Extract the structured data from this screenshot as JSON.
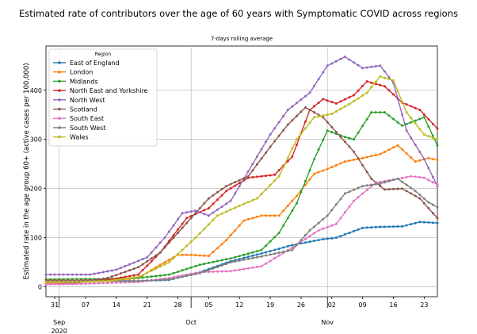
{
  "chart_data": {
    "type": "line",
    "title": "Estimated rate of contributors over the age of 60 years with Symptomatic COVID across regions",
    "subtitle": "7-days rolling average",
    "xlabel": "",
    "ylabel": "Estimated rate in the age group 60+ (active cases per 100,000)",
    "x_start": "2020-08-29",
    "x_end": "2020-11-26",
    "xlim": [
      "2020-08-29",
      "2020-11-26"
    ],
    "ylim": [
      -20,
      490
    ],
    "x_ticks": [
      {
        "date": "2020-08-31",
        "label": "31"
      },
      {
        "date": "2020-09-07",
        "label": "07"
      },
      {
        "date": "2020-09-14",
        "label": "14"
      },
      {
        "date": "2020-09-21",
        "label": "21"
      },
      {
        "date": "2020-09-28",
        "label": "28"
      },
      {
        "date": "2020-10-05",
        "label": "05"
      },
      {
        "date": "2020-10-12",
        "label": "12"
      },
      {
        "date": "2020-10-19",
        "label": "19"
      },
      {
        "date": "2020-10-26",
        "label": "26"
      },
      {
        "date": "2020-11-02",
        "label": "02"
      },
      {
        "date": "2020-11-09",
        "label": "09"
      },
      {
        "date": "2020-11-16",
        "label": "16"
      },
      {
        "date": "2020-11-23",
        "label": "23"
      }
    ],
    "month_labels": [
      {
        "date": "2020-09-01",
        "label": "Sep"
      },
      {
        "date": "2020-10-01",
        "label": "Oct"
      },
      {
        "date": "2020-11-01",
        "label": "Nov"
      }
    ],
    "year_label": {
      "date": "2020-09-01",
      "label": "2020"
    },
    "y_ticks": [
      0,
      100,
      200,
      300,
      400
    ],
    "grid_x_dates": [
      "2020-09-01",
      "2020-10-01",
      "2020-11-01"
    ],
    "grid_y": [
      0,
      100,
      200,
      300,
      400
    ],
    "legend_title": "Region",
    "legend_position": "top-left",
    "series": [
      {
        "name": "East of England",
        "color": "#1f77b4",
        "points": [
          [
            "2020-08-29",
            10
          ],
          [
            "2020-09-05",
            12
          ],
          [
            "2020-09-12",
            13
          ],
          [
            "2020-09-19",
            12
          ],
          [
            "2020-09-26",
            14
          ],
          [
            "2020-10-03",
            30
          ],
          [
            "2020-10-10",
            52
          ],
          [
            "2020-10-17",
            68
          ],
          [
            "2020-10-24",
            85
          ],
          [
            "2020-10-31",
            97
          ],
          [
            "2020-11-03",
            100
          ],
          [
            "2020-11-06",
            110
          ],
          [
            "2020-11-09",
            120
          ],
          [
            "2020-11-13",
            122
          ],
          [
            "2020-11-18",
            123
          ],
          [
            "2020-11-22",
            132
          ],
          [
            "2020-11-26",
            130
          ]
        ]
      },
      {
        "name": "London",
        "color": "#ff7f0e",
        "points": [
          [
            "2020-08-29",
            8
          ],
          [
            "2020-09-05",
            10
          ],
          [
            "2020-09-12",
            12
          ],
          [
            "2020-09-19",
            18
          ],
          [
            "2020-09-24",
            45
          ],
          [
            "2020-09-28",
            65
          ],
          [
            "2020-10-01",
            65
          ],
          [
            "2020-10-05",
            63
          ],
          [
            "2020-10-09",
            95
          ],
          [
            "2020-10-13",
            135
          ],
          [
            "2020-10-17",
            145
          ],
          [
            "2020-10-21",
            145
          ],
          [
            "2020-10-25",
            185
          ],
          [
            "2020-10-29",
            230
          ],
          [
            "2020-11-01",
            240
          ],
          [
            "2020-11-05",
            255
          ],
          [
            "2020-11-09",
            262
          ],
          [
            "2020-11-13",
            270
          ],
          [
            "2020-11-17",
            288
          ],
          [
            "2020-11-21",
            255
          ],
          [
            "2020-11-24",
            262
          ],
          [
            "2020-11-26",
            258
          ]
        ]
      },
      {
        "name": "Midlands",
        "color": "#2ca02c",
        "points": [
          [
            "2020-08-29",
            15
          ],
          [
            "2020-09-05",
            16
          ],
          [
            "2020-09-12",
            16
          ],
          [
            "2020-09-19",
            18
          ],
          [
            "2020-09-26",
            25
          ],
          [
            "2020-10-03",
            45
          ],
          [
            "2020-10-10",
            58
          ],
          [
            "2020-10-17",
            75
          ],
          [
            "2020-10-21",
            110
          ],
          [
            "2020-10-25",
            170
          ],
          [
            "2020-10-29",
            260
          ],
          [
            "2020-11-01",
            318
          ],
          [
            "2020-11-05",
            305
          ],
          [
            "2020-11-07",
            300
          ],
          [
            "2020-11-11",
            355
          ],
          [
            "2020-11-14",
            355
          ],
          [
            "2020-11-18",
            328
          ],
          [
            "2020-11-23",
            345
          ],
          [
            "2020-11-26",
            288
          ]
        ]
      },
      {
        "name": "North East and Yorkshire",
        "color": "#d62728",
        "points": [
          [
            "2020-08-29",
            13
          ],
          [
            "2020-09-05",
            13
          ],
          [
            "2020-09-12",
            14
          ],
          [
            "2020-09-19",
            25
          ],
          [
            "2020-09-24",
            70
          ],
          [
            "2020-09-30",
            140
          ],
          [
            "2020-10-05",
            160
          ],
          [
            "2020-10-09",
            195
          ],
          [
            "2020-10-14",
            222
          ],
          [
            "2020-10-20",
            228
          ],
          [
            "2020-10-24",
            265
          ],
          [
            "2020-10-28",
            360
          ],
          [
            "2020-10-31",
            382
          ],
          [
            "2020-11-03",
            373
          ],
          [
            "2020-11-07",
            390
          ],
          [
            "2020-11-10",
            418
          ],
          [
            "2020-11-14",
            408
          ],
          [
            "2020-11-18",
            375
          ],
          [
            "2020-11-22",
            360
          ],
          [
            "2020-11-26",
            322
          ]
        ]
      },
      {
        "name": "North West",
        "color": "#9467bd",
        "points": [
          [
            "2020-08-29",
            25
          ],
          [
            "2020-09-03",
            25
          ],
          [
            "2020-09-08",
            25
          ],
          [
            "2020-09-14",
            35
          ],
          [
            "2020-09-21",
            60
          ],
          [
            "2020-09-25",
            100
          ],
          [
            "2020-09-29",
            150
          ],
          [
            "2020-10-02",
            155
          ],
          [
            "2020-10-05",
            145
          ],
          [
            "2020-10-10",
            175
          ],
          [
            "2020-10-15",
            250
          ],
          [
            "2020-10-19",
            310
          ],
          [
            "2020-10-23",
            360
          ],
          [
            "2020-10-28",
            395
          ],
          [
            "2020-11-01",
            450
          ],
          [
            "2020-11-05",
            468
          ],
          [
            "2020-11-09",
            445
          ],
          [
            "2020-11-13",
            450
          ],
          [
            "2020-11-16",
            415
          ],
          [
            "2020-11-19",
            318
          ],
          [
            "2020-11-23",
            260
          ],
          [
            "2020-11-26",
            205
          ]
        ]
      },
      {
        "name": "Scotland",
        "color": "#8c564b",
        "points": [
          [
            "2020-08-29",
            5
          ],
          [
            "2020-09-05",
            8
          ],
          [
            "2020-09-12",
            18
          ],
          [
            "2020-09-19",
            40
          ],
          [
            "2020-09-24",
            70
          ],
          [
            "2020-09-30",
            130
          ],
          [
            "2020-10-05",
            180
          ],
          [
            "2020-10-09",
            205
          ],
          [
            "2020-10-14",
            225
          ],
          [
            "2020-10-19",
            285
          ],
          [
            "2020-10-23",
            330
          ],
          [
            "2020-10-27",
            365
          ],
          [
            "2020-10-31",
            345
          ],
          [
            "2020-11-04",
            305
          ],
          [
            "2020-11-07",
            275
          ],
          [
            "2020-11-11",
            220
          ],
          [
            "2020-11-14",
            198
          ],
          [
            "2020-11-18",
            200
          ],
          [
            "2020-11-22",
            180
          ],
          [
            "2020-11-26",
            140
          ]
        ]
      },
      {
        "name": "South East",
        "color": "#e377c2",
        "points": [
          [
            "2020-08-29",
            5
          ],
          [
            "2020-09-05",
            6
          ],
          [
            "2020-09-12",
            8
          ],
          [
            "2020-09-19",
            10
          ],
          [
            "2020-09-26",
            18
          ],
          [
            "2020-10-03",
            30
          ],
          [
            "2020-10-10",
            32
          ],
          [
            "2020-10-17",
            42
          ],
          [
            "2020-10-24",
            80
          ],
          [
            "2020-10-30",
            115
          ],
          [
            "2020-11-03",
            128
          ],
          [
            "2020-11-07",
            175
          ],
          [
            "2020-11-12",
            212
          ],
          [
            "2020-11-16",
            218
          ],
          [
            "2020-11-20",
            225
          ],
          [
            "2020-11-23",
            222
          ],
          [
            "2020-11-26",
            208
          ]
        ]
      },
      {
        "name": "South West",
        "color": "#7f7f7f",
        "points": [
          [
            "2020-08-29",
            12
          ],
          [
            "2020-09-05",
            12
          ],
          [
            "2020-09-12",
            12
          ],
          [
            "2020-09-19",
            12
          ],
          [
            "2020-09-26",
            15
          ],
          [
            "2020-10-03",
            28
          ],
          [
            "2020-10-10",
            50
          ],
          [
            "2020-10-17",
            62
          ],
          [
            "2020-10-24",
            75
          ],
          [
            "2020-10-28",
            115
          ],
          [
            "2020-11-01",
            145
          ],
          [
            "2020-11-05",
            190
          ],
          [
            "2020-11-09",
            205
          ],
          [
            "2020-11-13",
            210
          ],
          [
            "2020-11-17",
            220
          ],
          [
            "2020-11-21",
            195
          ],
          [
            "2020-11-24",
            172
          ],
          [
            "2020-11-26",
            162
          ]
        ]
      },
      {
        "name": "Wales",
        "color": "#bcbd22",
        "points": [
          [
            "2020-08-29",
            10
          ],
          [
            "2020-09-05",
            10
          ],
          [
            "2020-09-12",
            12
          ],
          [
            "2020-09-19",
            20
          ],
          [
            "2020-09-26",
            50
          ],
          [
            "2020-10-02",
            100
          ],
          [
            "2020-10-07",
            145
          ],
          [
            "2020-10-12",
            165
          ],
          [
            "2020-10-16",
            180
          ],
          [
            "2020-10-21",
            225
          ],
          [
            "2020-10-25",
            300
          ],
          [
            "2020-10-29",
            345
          ],
          [
            "2020-11-02",
            352
          ],
          [
            "2020-11-06",
            372
          ],
          [
            "2020-11-10",
            395
          ],
          [
            "2020-11-13",
            428
          ],
          [
            "2020-11-16",
            420
          ],
          [
            "2020-11-19",
            355
          ],
          [
            "2020-11-23",
            310
          ],
          [
            "2020-11-26",
            300
          ]
        ]
      }
    ]
  }
}
